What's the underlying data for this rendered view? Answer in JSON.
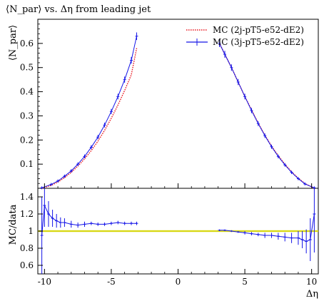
{
  "chart_data": {
    "type": "line",
    "title": "⟨N_par⟩ vs. Δη from leading jet",
    "xlabel": "Δη",
    "ylabel": "⟨N_par⟩",
    "ratio_ylabel": "MC/data",
    "xlim": [
      -10.5,
      10.5
    ],
    "ylim": [
      0,
      0.7
    ],
    "ratio_ylim": [
      0.5,
      1.5
    ],
    "x_ticks": [
      -10,
      -5,
      0,
      5,
      10
    ],
    "x_tick_labels": [
      "-10",
      "-5",
      "0",
      "5",
      "10"
    ],
    "y_ticks": [
      0.1,
      0.2,
      0.3,
      0.4,
      0.5,
      0.6
    ],
    "y_tick_labels": [
      "0.1",
      "0.2",
      "0.3",
      "0.4",
      "0.5",
      "0.6"
    ],
    "ratio_y_ticks": [
      0.6,
      0.8,
      1,
      1.2,
      1.4
    ],
    "ratio_y_tick_labels": [
      "0.6",
      "0.8",
      "1",
      "1.2",
      "1.4"
    ],
    "legend_position": "top-right",
    "series": [
      {
        "name": "MC (2j-pT5-e52-dE2)",
        "style": "dotted",
        "color": "#e8121b",
        "x": [
          -10.2,
          -9.5,
          -9.0,
          -8.5,
          -8.0,
          -7.5,
          -7.0,
          -6.5,
          -6.0,
          -5.5,
          -5.0,
          -4.5,
          -4.0,
          -3.5,
          -3.1,
          3.1,
          3.5,
          4.0,
          4.5,
          5.0,
          5.5,
          6.0,
          6.5,
          7.0,
          7.5,
          8.0,
          8.5,
          9.0,
          9.5,
          10.2
        ],
        "y": [
          0.0,
          0.012,
          0.026,
          0.044,
          0.066,
          0.092,
          0.122,
          0.156,
          0.195,
          0.24,
          0.29,
          0.345,
          0.405,
          0.47,
          0.58,
          0.6,
          0.555,
          0.5,
          0.44,
          0.38,
          0.325,
          0.27,
          0.22,
          0.175,
          0.135,
          0.1,
          0.068,
          0.042,
          0.02,
          0.0
        ]
      },
      {
        "name": "MC (3j-pT5-e52-dE2)",
        "style": "errorbars",
        "color": "#1515e8",
        "x": [
          -10.2,
          -9.5,
          -9.0,
          -8.5,
          -8.0,
          -7.5,
          -7.0,
          -6.5,
          -6.0,
          -5.5,
          -5.0,
          -4.5,
          -4.0,
          -3.5,
          -3.1,
          3.1,
          3.5,
          4.0,
          4.5,
          5.0,
          5.5,
          6.0,
          6.5,
          7.0,
          7.5,
          8.0,
          8.5,
          9.0,
          9.5,
          10.2
        ],
        "y": [
          0.002,
          0.016,
          0.03,
          0.05,
          0.072,
          0.1,
          0.132,
          0.17,
          0.212,
          0.262,
          0.318,
          0.38,
          0.45,
          0.53,
          0.63,
          0.6,
          0.555,
          0.5,
          0.44,
          0.38,
          0.322,
          0.268,
          0.218,
          0.172,
          0.132,
          0.097,
          0.066,
          0.04,
          0.018,
          0.002
        ]
      }
    ],
    "ratio_series": {
      "x": [
        -10.2,
        -10.0,
        -9.7,
        -9.4,
        -9.1,
        -8.8,
        -8.5,
        -8.0,
        -7.5,
        -7.0,
        -6.5,
        -6.0,
        -5.5,
        -5.0,
        -4.5,
        -4.0,
        -3.5,
        -3.1,
        3.1,
        3.5,
        4.0,
        4.5,
        5.0,
        5.5,
        6.0,
        6.5,
        7.0,
        7.5,
        8.0,
        8.5,
        9.0,
        9.3,
        9.6,
        9.9,
        10.2
      ],
      "y": [
        0.95,
        1.3,
        1.2,
        1.15,
        1.12,
        1.1,
        1.1,
        1.08,
        1.07,
        1.08,
        1.09,
        1.08,
        1.08,
        1.09,
        1.1,
        1.09,
        1.09,
        1.09,
        1.01,
        1.01,
        1.0,
        0.99,
        0.98,
        0.97,
        0.96,
        0.95,
        0.95,
        0.94,
        0.93,
        0.92,
        0.92,
        0.9,
        0.88,
        0.9,
        1.2
      ],
      "err": [
        0.45,
        0.25,
        0.15,
        0.1,
        0.08,
        0.06,
        0.05,
        0.04,
        0.03,
        0.03,
        0.02,
        0.02,
        0.02,
        0.02,
        0.02,
        0.02,
        0.02,
        0.02,
        0.01,
        0.01,
        0.01,
        0.01,
        0.02,
        0.02,
        0.02,
        0.03,
        0.03,
        0.04,
        0.05,
        0.06,
        0.08,
        0.1,
        0.14,
        0.25,
        0.45
      ]
    },
    "ratio_band_color": "#d8d816"
  }
}
